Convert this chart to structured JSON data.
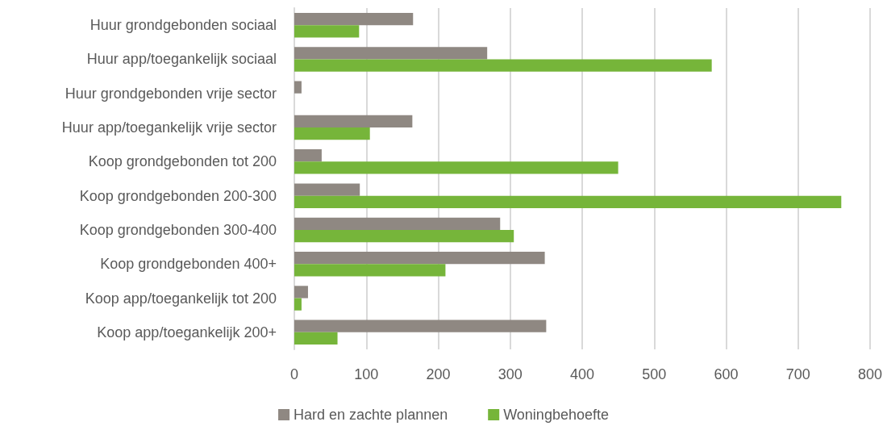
{
  "chart_data": {
    "type": "bar",
    "orientation": "horizontal",
    "categories": [
      "Huur grondgebonden sociaal",
      "Huur app/toegankelijk sociaal",
      "Huur grondgebonden vrije sector",
      "Huur app/toegankelijk vrije sector",
      "Koop grondgebonden tot 200",
      "Koop grondgebonden 200-300",
      "Koop grondgebonden 300-400",
      "Koop grondgebonden 400+",
      "Koop app/toegankelijk tot 200",
      "Koop app/toegankelijk 200+"
    ],
    "series": [
      {
        "name": "Hard en zachte plannen",
        "color": "#8f8882",
        "values": [
          165,
          268,
          10,
          164,
          38,
          91,
          286,
          348,
          19,
          350
        ]
      },
      {
        "name": "Woningbehoefte",
        "color": "#76b53a",
        "values": [
          90,
          580,
          null,
          105,
          450,
          760,
          305,
          210,
          10,
          60
        ]
      }
    ],
    "xlim": [
      0,
      800
    ],
    "xticks": [
      0,
      100,
      200,
      300,
      400,
      500,
      600,
      700,
      800
    ],
    "grid": "x",
    "legend": "bottom"
  }
}
